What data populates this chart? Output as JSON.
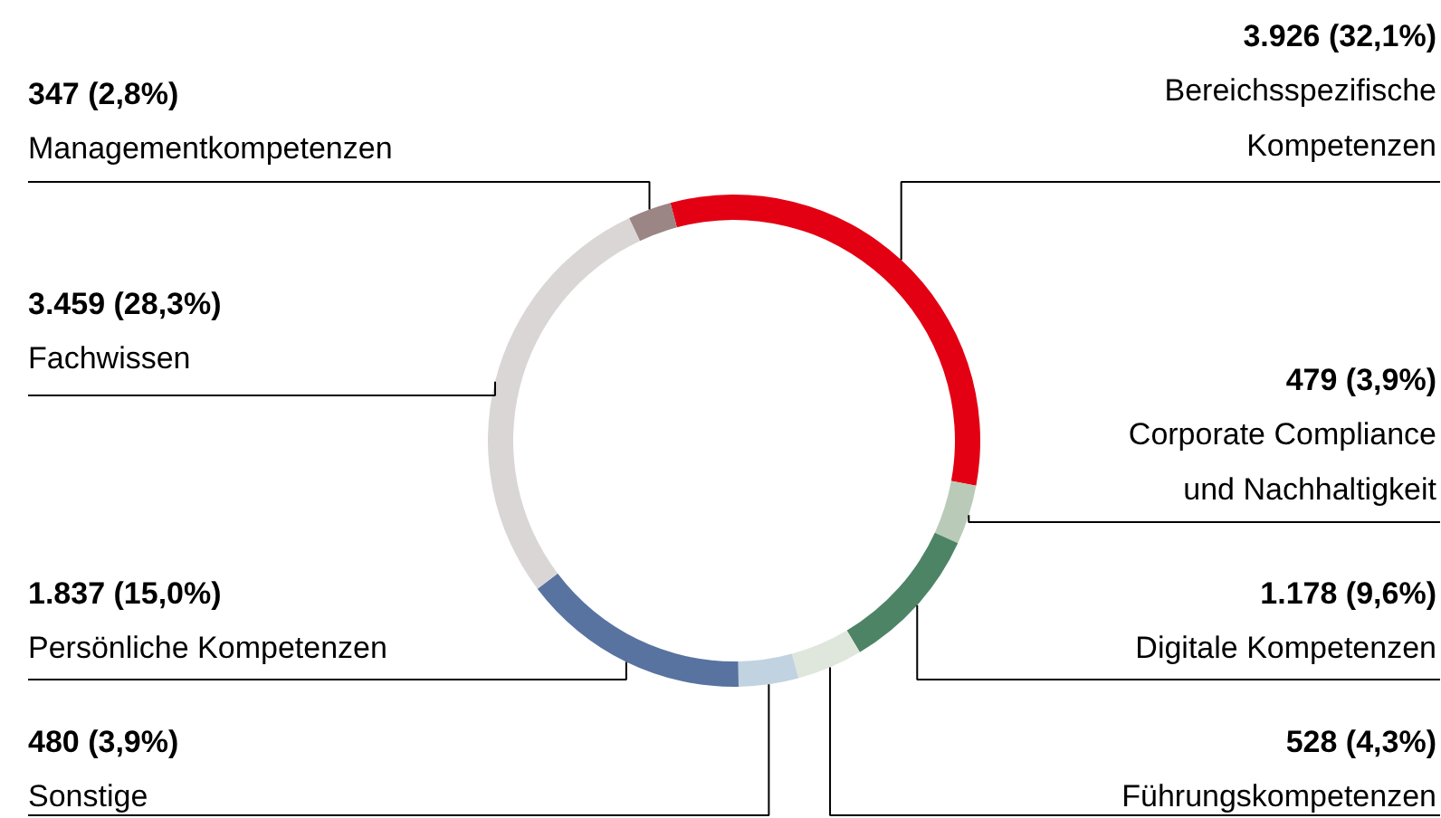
{
  "chart_data": {
    "type": "donut",
    "categories": [
      "Bereichsspezifische\nKompetenzen",
      "Corporate Compliance\nund Nachhaltigkeit",
      "Digitale Kompetenzen",
      "Führungskompetenzen",
      "Sonstige",
      "Persönliche Kompetenzen",
      "Fachwissen",
      "Managementkompetenzen"
    ],
    "values": [
      3926,
      479,
      1178,
      528,
      480,
      1837,
      3459,
      347
    ],
    "colors": [
      "#e30013",
      "#b9cbb8",
      "#4e8466",
      "#dfe6dc",
      "#c1d2e0",
      "#5873a0",
      "#dbd6d6",
      "#9c8585"
    ],
    "value_labels": [
      "3.926 (32,1%)",
      "479 (3,9%)",
      "1.178 (9,6%)",
      "528 (4,3%)",
      "480 (3,9%)",
      "1.837 (15,0%)",
      "3.459 (28,3%)",
      "347 (2,8%)"
    ]
  }
}
